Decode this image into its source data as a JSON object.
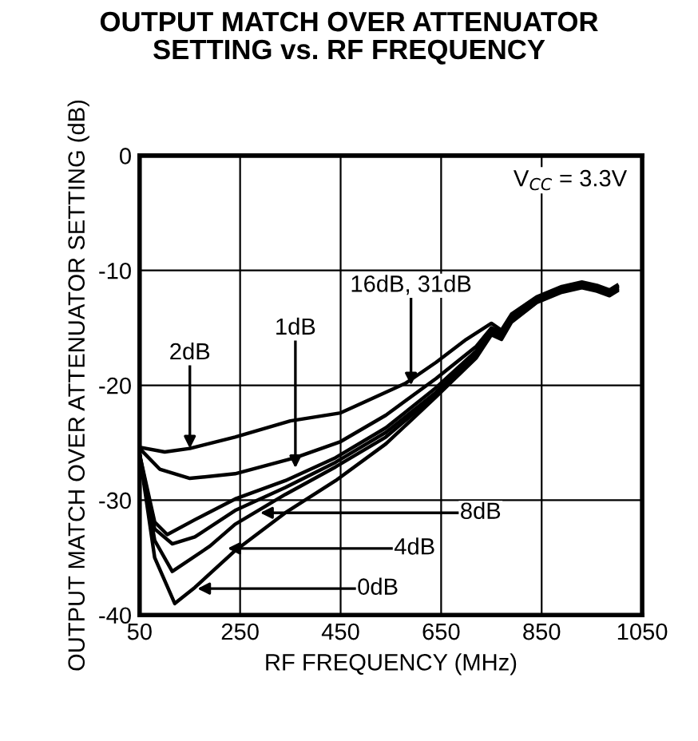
{
  "chart_data": {
    "type": "line",
    "title": "OUTPUT MATCH OVER ATTENUATOR\nSETTING vs. RF FREQUENCY",
    "xlabel": "RF FREQUENCY (MHz)",
    "ylabel": "OUTPUT MATCH OVER ATTENUATOR SETTING (dB)",
    "xlim": [
      50,
      1050
    ],
    "ylim": [
      -40,
      0
    ],
    "xticks": [
      50,
      250,
      450,
      650,
      850,
      1050
    ],
    "yticks": [
      -40,
      -30,
      -20,
      -10,
      0
    ],
    "grid": true,
    "marker": "none",
    "line_style": "solid",
    "series": [
      {
        "color": "#000000",
        "x": [
          50,
          100,
          150,
          240,
          350,
          450,
          540,
          580,
          640,
          700,
          750,
          770,
          790,
          840,
          890,
          930,
          960,
          985,
          1000
        ],
        "values": [
          -25.4,
          -25.8,
          -25.5,
          -24.5,
          -23.1,
          -22.4,
          -20.6,
          -19.8,
          -18,
          -16,
          -14.6,
          -15.2,
          -13.8,
          -12.3,
          -11.4,
          -11,
          -11.3,
          -11.7,
          -11.3
        ]
      },
      {
        "color": "#000000",
        "x": [
          50,
          90,
          150,
          240,
          360,
          450,
          540,
          640,
          720,
          750,
          770,
          790,
          840,
          890,
          930,
          960,
          985,
          1000
        ],
        "values": [
          -25.5,
          -27.3,
          -28.1,
          -27.7,
          -26.3,
          -24.9,
          -22.6,
          -19.4,
          -16.6,
          -15,
          -15.4,
          -14,
          -12.4,
          -11.5,
          -11.1,
          -11.4,
          -11.8,
          -11.4
        ]
      },
      {
        "color": "#000000",
        "x": [
          50,
          80,
          105,
          160,
          240,
          340,
          440,
          540,
          640,
          720,
          750,
          770,
          790,
          840,
          890,
          930,
          960,
          985,
          1000
        ],
        "values": [
          -26,
          -31.9,
          -33,
          -31.7,
          -29.9,
          -28.3,
          -26.3,
          -23.7,
          -20.2,
          -17,
          -15.2,
          -15.6,
          -14.2,
          -12.5,
          -11.6,
          -11.2,
          -11.5,
          -11.9,
          -11.5
        ]
      },
      {
        "color": "#000000",
        "x": [
          50,
          80,
          115,
          160,
          240,
          340,
          440,
          540,
          640,
          720,
          750,
          770,
          790,
          840,
          890,
          930,
          960,
          985,
          1000
        ],
        "values": [
          -26,
          -32.5,
          -33.8,
          -33.2,
          -30.9,
          -28.9,
          -26.7,
          -24.1,
          -20.6,
          -17.2,
          -15.4,
          -15.8,
          -14.3,
          -12.6,
          -11.7,
          -11.3,
          -11.6,
          -12,
          -11.6
        ]
      },
      {
        "color": "#000000",
        "x": [
          50,
          80,
          115,
          190,
          240,
          340,
          440,
          540,
          640,
          720,
          750,
          770,
          790,
          840,
          890,
          930,
          960,
          985,
          1000
        ],
        "values": [
          -26,
          -33.5,
          -36.2,
          -34,
          -32.1,
          -29.5,
          -27.1,
          -24.5,
          -20.8,
          -17.4,
          -15.5,
          -15.9,
          -14.4,
          -12.7,
          -11.8,
          -11.4,
          -11.7,
          -12.1,
          -11.7
        ]
      },
      {
        "color": "#000000",
        "x": [
          50,
          80,
          120,
          160,
          240,
          340,
          440,
          540,
          640,
          720,
          750,
          770,
          790,
          840,
          890,
          930,
          960,
          985,
          1000
        ],
        "values": [
          -26,
          -35,
          -39,
          -37.6,
          -34.4,
          -31.1,
          -28.3,
          -25.1,
          -21,
          -17.6,
          -15.6,
          -16,
          -14.5,
          -12.8,
          -11.9,
          -11.5,
          -11.8,
          -12.2,
          -11.8
        ]
      }
    ],
    "annotations": [
      {
        "text": "2dB",
        "x": 150,
        "y": -25.5
      },
      {
        "text": "1dB",
        "x": 360,
        "y": -27.2
      },
      {
        "text": "16dB, 31dB",
        "x": 590,
        "y": -20
      },
      {
        "text": "8dB",
        "x": 290,
        "y": -31.1
      },
      {
        "text": "4dB",
        "x": 225,
        "y": -34.2
      },
      {
        "text": "0dB",
        "x": 165,
        "y": -37.7
      },
      "V$_{CC}$ = 3.3V"
    ]
  }
}
